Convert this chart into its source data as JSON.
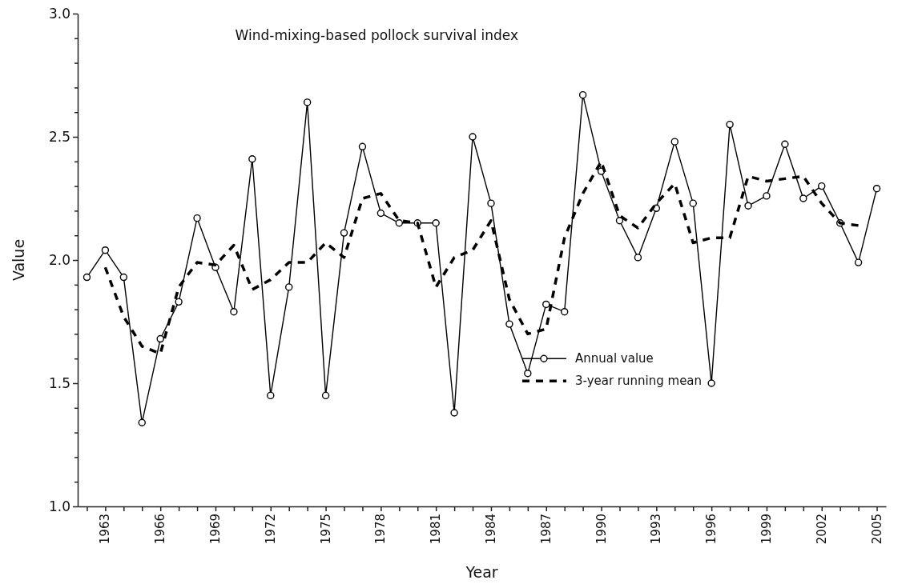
{
  "chart_data": {
    "type": "line",
    "title": "Wind-mixing-based pollock survival index",
    "xlabel": "Year",
    "ylabel": "Value",
    "xlim": [
      1961.5,
      2005.5
    ],
    "xticks": [
      {
        "value": 1962,
        "label": null
      },
      {
        "value": 1963,
        "label": "1963"
      },
      {
        "value": 1964,
        "label": null
      },
      {
        "value": 1965,
        "label": null
      },
      {
        "value": 1966,
        "label": "1966"
      },
      {
        "value": 1967,
        "label": null
      },
      {
        "value": 1968,
        "label": null
      },
      {
        "value": 1969,
        "label": "1969"
      },
      {
        "value": 1970,
        "label": null
      },
      {
        "value": 1971,
        "label": null
      },
      {
        "value": 1972,
        "label": "1972"
      },
      {
        "value": 1973,
        "label": null
      },
      {
        "value": 1974,
        "label": null
      },
      {
        "value": 1975,
        "label": "1975"
      },
      {
        "value": 1976,
        "label": null
      },
      {
        "value": 1977,
        "label": null
      },
      {
        "value": 1978,
        "label": "1978"
      },
      {
        "value": 1979,
        "label": null
      },
      {
        "value": 1980,
        "label": null
      },
      {
        "value": 1981,
        "label": "1981"
      },
      {
        "value": 1982,
        "label": null
      },
      {
        "value": 1983,
        "label": null
      },
      {
        "value": 1984,
        "label": "1984"
      },
      {
        "value": 1985,
        "label": null
      },
      {
        "value": 1986,
        "label": null
      },
      {
        "value": 1987,
        "label": "1987"
      },
      {
        "value": 1988,
        "label": null
      },
      {
        "value": 1989,
        "label": null
      },
      {
        "value": 1990,
        "label": "1990"
      },
      {
        "value": 1991,
        "label": null
      },
      {
        "value": 1992,
        "label": null
      },
      {
        "value": 1993,
        "label": "1993"
      },
      {
        "value": 1994,
        "label": null
      },
      {
        "value": 1995,
        "label": null
      },
      {
        "value": 1996,
        "label": "1996"
      },
      {
        "value": 1997,
        "label": null
      },
      {
        "value": 1998,
        "label": null
      },
      {
        "value": 1999,
        "label": "1999"
      },
      {
        "value": 2000,
        "label": null
      },
      {
        "value": 2001,
        "label": null
      },
      {
        "value": 2002,
        "label": "2002"
      },
      {
        "value": 2003,
        "label": null
      },
      {
        "value": 2004,
        "label": null
      },
      {
        "value": 2005,
        "label": "2005"
      }
    ],
    "ylim": [
      1,
      3
    ],
    "yticks": [
      {
        "value": 1,
        "label": "1.0"
      },
      {
        "value": 1.1,
        "label": null
      },
      {
        "value": 1.2,
        "label": null
      },
      {
        "value": 1.3,
        "label": null
      },
      {
        "value": 1.4,
        "label": null
      },
      {
        "value": 1.5,
        "label": "1.5"
      },
      {
        "value": 1.6,
        "label": null
      },
      {
        "value": 1.7,
        "label": null
      },
      {
        "value": 1.8,
        "label": null
      },
      {
        "value": 1.9,
        "label": null
      },
      {
        "value": 2,
        "label": "2.0"
      },
      {
        "value": 2.1,
        "label": null
      },
      {
        "value": 2.2,
        "label": null
      },
      {
        "value": 2.3,
        "label": null
      },
      {
        "value": 2.4,
        "label": null
      },
      {
        "value": 2.5,
        "label": "2.5"
      },
      {
        "value": 2.6,
        "label": null
      },
      {
        "value": 2.7,
        "label": null
      },
      {
        "value": 2.8,
        "label": null
      },
      {
        "value": 2.9,
        "label": null
      },
      {
        "value": 3,
        "label": "3.0"
      }
    ],
    "legend": "bottom right",
    "series": [
      {
        "name": "Annual value",
        "color": "#000000",
        "marker": "circle",
        "line_style": "solid",
        "x": [
          1962,
          1963,
          1964,
          1965,
          1966,
          1967,
          1968,
          1969,
          1970,
          1971,
          1972,
          1973,
          1974,
          1975,
          1976,
          1977,
          1978,
          1979,
          1980,
          1981,
          1982,
          1983,
          1984,
          1985,
          1986,
          1987,
          1988,
          1989,
          1990,
          1991,
          1992,
          1993,
          1994,
          1995,
          1996,
          1997,
          1998,
          1999,
          2000,
          2001,
          2002,
          2003,
          2004,
          2005
        ],
        "values": [
          1.93,
          2.04,
          1.93,
          1.34,
          1.68,
          1.83,
          2.17,
          1.97,
          1.79,
          2.41,
          1.45,
          1.89,
          2.64,
          1.45,
          2.11,
          2.46,
          2.19,
          2.15,
          2.15,
          2.15,
          1.38,
          2.5,
          2.23,
          1.74,
          1.54,
          1.82,
          1.79,
          2.67,
          2.36,
          2.16,
          2.01,
          2.21,
          2.48,
          2.23,
          1.5,
          2.55,
          2.22,
          2.26,
          2.47,
          2.25,
          2.3,
          2.15,
          1.99,
          2.29
        ]
      },
      {
        "name": "3-year running mean",
        "color": "#000000",
        "marker": "none",
        "line_style": "dashed",
        "x": [
          1963,
          1964,
          1965,
          1966,
          1967,
          1968,
          1969,
          1970,
          1971,
          1972,
          1973,
          1974,
          1975,
          1976,
          1977,
          1978,
          1979,
          1980,
          1981,
          1982,
          1983,
          1984,
          1985,
          1986,
          1987,
          1988,
          1989,
          1990,
          1991,
          1992,
          1993,
          1994,
          1995,
          1996,
          1997,
          1998,
          1999,
          2000,
          2001,
          2002,
          2003,
          2004
        ],
        "values": [
          1.97,
          1.77,
          1.65,
          1.62,
          1.89,
          1.99,
          1.98,
          2.06,
          1.88,
          1.92,
          1.99,
          1.99,
          2.07,
          2.01,
          2.25,
          2.27,
          2.16,
          2.15,
          1.89,
          2.01,
          2.04,
          2.16,
          1.84,
          1.7,
          1.72,
          2.09,
          2.27,
          2.4,
          2.18,
          2.13,
          2.23,
          2.31,
          2.07,
          2.09,
          2.09,
          2.34,
          2.32,
          2.33,
          2.34,
          2.23,
          2.15,
          2.14
        ]
      }
    ]
  }
}
